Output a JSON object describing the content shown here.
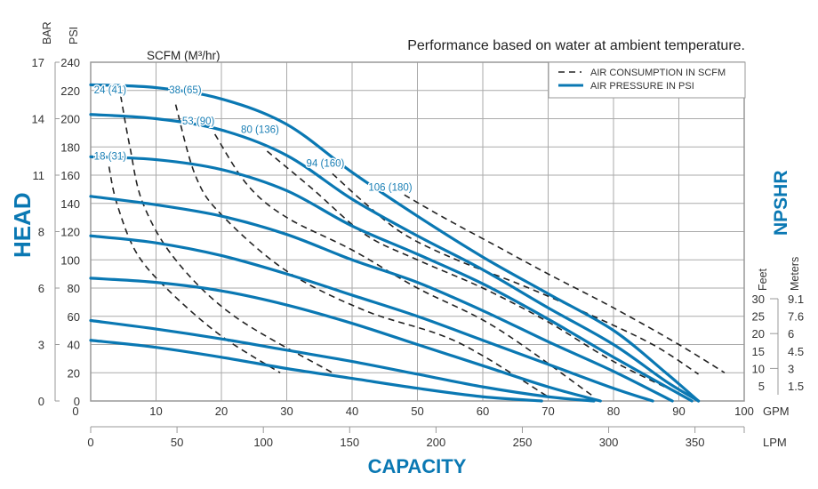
{
  "chart_data": {
    "type": "line",
    "title": "Performance based on water at ambient temperature.",
    "xlabel": "CAPACITY",
    "ylabel": "HEAD",
    "right_label": "NPSHR",
    "sub_label_scfm": "SCFM (M³/hr)",
    "x_unit_primary": "GPM",
    "x_unit_secondary": "LPM",
    "y_unit_primary": "PSI",
    "y_unit_secondary": "BAR",
    "npshr_unit_feet": "Feet",
    "npshr_unit_meters": "Meters",
    "xlim": [
      0,
      100
    ],
    "ylim": [
      0,
      240
    ],
    "grid": true,
    "legend_position": "top-right",
    "legend": [
      {
        "label": "AIR CONSUMPTION IN SCFM",
        "style": "dashed",
        "color": "#222222"
      },
      {
        "label": "AIR PRESSURE IN PSI",
        "style": "solid",
        "color": "#0a78b3"
      }
    ],
    "x_ticks_gpm": [
      "0",
      "10",
      "20",
      "30",
      "40",
      "50",
      "60",
      "70",
      "80",
      "90",
      "100"
    ],
    "x_ticks_lpm": [
      "0",
      "50",
      "100",
      "150",
      "200",
      "250",
      "300",
      "350"
    ],
    "y_ticks_psi": [
      "0",
      "20",
      "40",
      "60",
      "80",
      "100",
      "120",
      "140",
      "160",
      "180",
      "200",
      "220",
      "240"
    ],
    "y_ticks_bar": [
      {
        "label": "0",
        "psi": 0
      },
      {
        "label": "3",
        "psi": 40
      },
      {
        "label": "6",
        "psi": 80
      },
      {
        "label": "8",
        "psi": 120
      },
      {
        "label": "11",
        "psi": 160
      },
      {
        "label": "14",
        "psi": 200
      },
      {
        "label": "17",
        "psi": 240
      }
    ],
    "npshr_feet": [
      "30",
      "25",
      "20",
      "15",
      "10",
      "5"
    ],
    "npshr_meters": [
      "9.1",
      "7.6",
      "6",
      "4.5",
      "3",
      "1.5"
    ],
    "pressure_series": [
      {
        "name": "PSI curve 1",
        "points": [
          [
            0,
            224
          ],
          [
            10,
            222
          ],
          [
            20,
            214
          ],
          [
            30,
            196
          ],
          [
            40,
            162
          ],
          [
            50,
            131
          ],
          [
            60,
            102
          ],
          [
            70,
            76
          ],
          [
            80,
            50
          ],
          [
            88,
            20
          ],
          [
            93,
            0
          ]
        ]
      },
      {
        "name": "PSI curve 2",
        "points": [
          [
            0,
            203
          ],
          [
            10,
            200
          ],
          [
            20,
            192
          ],
          [
            30,
            174
          ],
          [
            40,
            143
          ],
          [
            50,
            117
          ],
          [
            60,
            93
          ],
          [
            70,
            66
          ],
          [
            80,
            40
          ],
          [
            88,
            14
          ],
          [
            93,
            0
          ]
        ]
      },
      {
        "name": "PSI curve 3",
        "points": [
          [
            0,
            173
          ],
          [
            10,
            171
          ],
          [
            20,
            164
          ],
          [
            30,
            149
          ],
          [
            40,
            124
          ],
          [
            50,
            104
          ],
          [
            60,
            83
          ],
          [
            70,
            58
          ],
          [
            80,
            31
          ],
          [
            92,
            0
          ]
        ]
      },
      {
        "name": "PSI curve 4",
        "points": [
          [
            0,
            145
          ],
          [
            10,
            139
          ],
          [
            20,
            131
          ],
          [
            30,
            118
          ],
          [
            40,
            100
          ],
          [
            50,
            84
          ],
          [
            60,
            64
          ],
          [
            70,
            42
          ],
          [
            80,
            21
          ],
          [
            89,
            0
          ]
        ]
      },
      {
        "name": "PSI curve 5",
        "points": [
          [
            0,
            117
          ],
          [
            10,
            112
          ],
          [
            20,
            103
          ],
          [
            30,
            90
          ],
          [
            40,
            75
          ],
          [
            50,
            60
          ],
          [
            60,
            43
          ],
          [
            70,
            26
          ],
          [
            80,
            9
          ],
          [
            86,
            0
          ]
        ]
      },
      {
        "name": "PSI curve 6",
        "points": [
          [
            0,
            87
          ],
          [
            10,
            84
          ],
          [
            20,
            78
          ],
          [
            30,
            68
          ],
          [
            40,
            55
          ],
          [
            50,
            40
          ],
          [
            60,
            25
          ],
          [
            70,
            10
          ],
          [
            78,
            0
          ]
        ]
      },
      {
        "name": "PSI curve 7",
        "points": [
          [
            0,
            57
          ],
          [
            10,
            51
          ],
          [
            20,
            44
          ],
          [
            30,
            36
          ],
          [
            40,
            28
          ],
          [
            50,
            19
          ],
          [
            60,
            10
          ],
          [
            70,
            3
          ],
          [
            77,
            0
          ]
        ]
      },
      {
        "name": "PSI curve 8",
        "points": [
          [
            0,
            43
          ],
          [
            10,
            38
          ],
          [
            20,
            31
          ],
          [
            30,
            23
          ],
          [
            40,
            16
          ],
          [
            50,
            9
          ],
          [
            60,
            3
          ],
          [
            69,
            0
          ]
        ]
      }
    ],
    "air_series": [
      {
        "name": "18 (31)",
        "label": "18 (31)",
        "label_at": [
          0.5,
          171
        ],
        "points": [
          [
            2.8,
            166
          ],
          [
            4,
            140
          ],
          [
            7,
            105
          ],
          [
            12,
            78
          ],
          [
            20,
            46
          ],
          [
            29,
            20
          ]
        ]
      },
      {
        "name": "24 (41)",
        "label": "24 (41)",
        "label_at": [
          0.5,
          218
        ],
        "points": [
          [
            4.6,
            216
          ],
          [
            6,
            180
          ],
          [
            8,
            140
          ],
          [
            13,
            100
          ],
          [
            22,
            60
          ],
          [
            37,
            20
          ]
        ]
      },
      {
        "name": "38 (65)",
        "label": "38 (65)",
        "label_at": [
          12,
          218
        ],
        "points": [
          [
            13,
            210
          ],
          [
            16,
            160
          ],
          [
            20,
            132
          ],
          [
            30,
            92
          ],
          [
            42,
            64
          ],
          [
            56,
            42
          ],
          [
            70,
            3
          ]
        ]
      },
      {
        "name": "53 (90)",
        "label": "53 (90)",
        "label_at": [
          14,
          196
        ],
        "points": [
          [
            19,
            189
          ],
          [
            24,
            153
          ],
          [
            30,
            130
          ],
          [
            40,
            107
          ],
          [
            50,
            80
          ],
          [
            62,
            52
          ],
          [
            77,
            3
          ]
        ]
      },
      {
        "name": "80 (136)",
        "label": "80 (136)",
        "label_at": [
          23,
          190
        ],
        "points": [
          [
            27,
            177
          ],
          [
            34,
            150
          ],
          [
            42,
            118
          ],
          [
            50,
            100
          ],
          [
            60,
            80
          ],
          [
            70,
            56
          ],
          [
            80,
            28
          ],
          [
            91,
            3
          ]
        ]
      },
      {
        "name": "94 (160)",
        "label": "94 (160)",
        "label_at": [
          33,
          166
        ],
        "points": [
          [
            37,
            161
          ],
          [
            42,
            140
          ],
          [
            48,
            118
          ],
          [
            56,
            100
          ],
          [
            66,
            82
          ],
          [
            76,
            62
          ],
          [
            86,
            40
          ],
          [
            93,
            19
          ]
        ]
      },
      {
        "name": "106 (180)",
        "label": "106 (180)",
        "label_at": [
          42.5,
          149
        ],
        "points": [
          [
            48,
            146
          ],
          [
            54,
            130
          ],
          [
            62,
            110
          ],
          [
            70,
            90
          ],
          [
            80,
            66
          ],
          [
            90,
            40
          ],
          [
            97,
            20
          ]
        ]
      }
    ]
  }
}
